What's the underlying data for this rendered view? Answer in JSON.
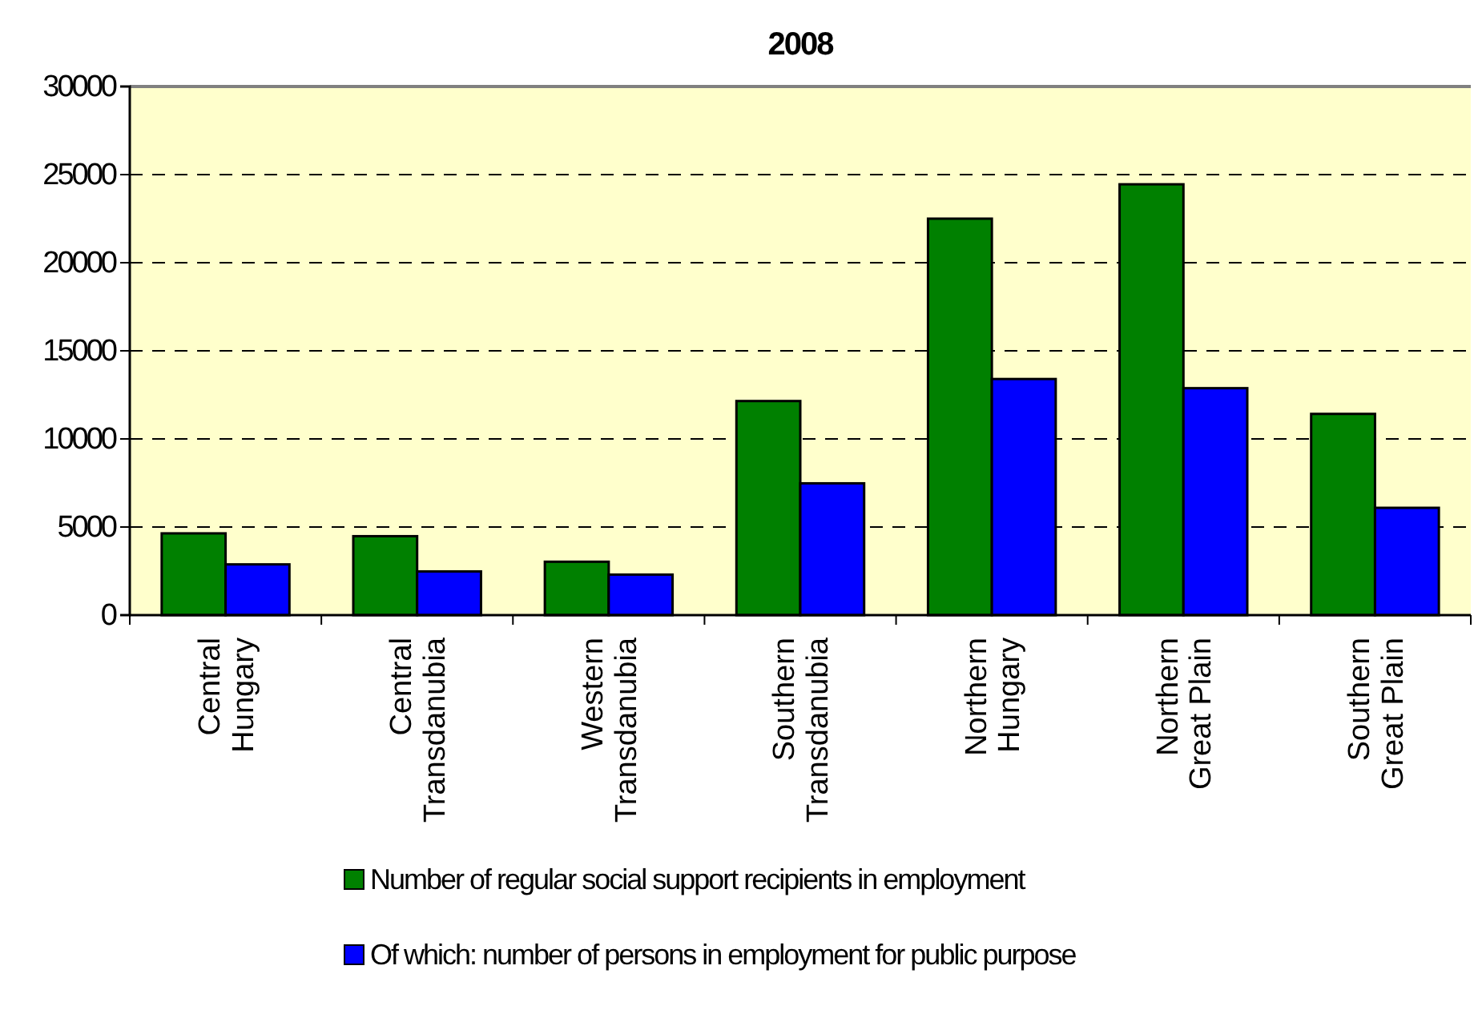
{
  "chart_data": {
    "type": "bar",
    "title": "2008",
    "categories": [
      "Central\nHungary",
      "Central\nTransdanubia",
      "Western\nTransdanubia",
      "Southern\nTransdanubia",
      "Northern\nHungary",
      "Northern\nGreat Plain",
      "Southern\nGreat Plain"
    ],
    "series": [
      {
        "name": "Number of regular social support recipients in employment",
        "color": "#008000",
        "values": [
          4640,
          4480,
          3030,
          12150,
          22500,
          24450,
          11420
        ]
      },
      {
        "name": "Of which: number of persons in employment for public purpose",
        "color": "#0000ff",
        "values": [
          2880,
          2480,
          2300,
          7480,
          13400,
          12880,
          6090
        ]
      }
    ],
    "ylim": [
      0,
      30000
    ],
    "yticks": [
      0,
      5000,
      10000,
      15000,
      20000,
      25000,
      30000
    ],
    "grid": "y",
    "legend": "bottom"
  }
}
